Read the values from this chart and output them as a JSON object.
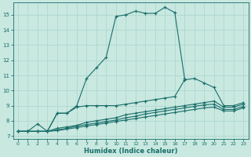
{
  "xlabel": "Humidex (Indice chaleur)",
  "ylabel": "",
  "xlim": [
    -0.5,
    23.5
  ],
  "ylim": [
    6.8,
    15.8
  ],
  "xticks": [
    0,
    1,
    2,
    3,
    4,
    5,
    6,
    7,
    8,
    9,
    10,
    11,
    12,
    13,
    14,
    15,
    16,
    17,
    18,
    19,
    20,
    21,
    22,
    23
  ],
  "yticks": [
    7,
    8,
    9,
    10,
    11,
    12,
    13,
    14,
    15
  ],
  "bg_color": "#c8e8e0",
  "grid_color": "#b0d8d0",
  "line_color": "#1a6e6a",
  "curves": [
    {
      "x": [
        0,
        1,
        2,
        3,
        4,
        5,
        6,
        7,
        8,
        9,
        10,
        11,
        12,
        13,
        14,
        15,
        16,
        17,
        18,
        19,
        20,
        21,
        22,
        23
      ],
      "y": [
        7.3,
        7.3,
        7.8,
        7.3,
        8.5,
        8.5,
        9.0,
        10.8,
        11.5,
        12.2,
        14.9,
        15.0,
        15.25,
        15.1,
        15.1,
        15.5,
        15.15,
        10.8,
        null,
        null,
        null,
        null,
        null,
        null
      ]
    },
    {
      "x": [
        0,
        1,
        2,
        3,
        4,
        5,
        6,
        7,
        8,
        9,
        10,
        11,
        12,
        13,
        14,
        15,
        16,
        17,
        18,
        19,
        20,
        21,
        22,
        23
      ],
      "y": [
        7.3,
        7.3,
        7.3,
        7.3,
        8.5,
        8.5,
        8.9,
        9.0,
        9.0,
        9.0,
        9.0,
        9.1,
        9.2,
        9.3,
        9.4,
        9.5,
        9.6,
        10.7,
        10.8,
        10.5,
        10.2,
        9.0,
        9.0,
        9.2
      ]
    },
    {
      "x": [
        0,
        1,
        2,
        3,
        4,
        5,
        6,
        7,
        8,
        9,
        10,
        11,
        12,
        13,
        14,
        15,
        16,
        17,
        18,
        19,
        20,
        21,
        22,
        23
      ],
      "y": [
        7.3,
        7.3,
        7.3,
        7.3,
        7.5,
        7.6,
        7.7,
        7.9,
        8.0,
        8.1,
        8.2,
        8.4,
        8.5,
        8.6,
        8.7,
        8.8,
        8.9,
        9.0,
        9.1,
        9.2,
        9.3,
        8.9,
        8.9,
        9.1
      ]
    },
    {
      "x": [
        0,
        1,
        2,
        3,
        4,
        5,
        6,
        7,
        8,
        9,
        10,
        11,
        12,
        13,
        14,
        15,
        16,
        17,
        18,
        19,
        20,
        21,
        22,
        23
      ],
      "y": [
        7.3,
        7.3,
        7.3,
        7.3,
        7.4,
        7.5,
        7.65,
        7.75,
        7.85,
        7.95,
        8.05,
        8.2,
        8.3,
        8.45,
        8.55,
        8.65,
        8.75,
        8.85,
        8.95,
        9.05,
        9.1,
        8.75,
        8.75,
        8.95
      ]
    },
    {
      "x": [
        0,
        1,
        2,
        3,
        4,
        5,
        6,
        7,
        8,
        9,
        10,
        11,
        12,
        13,
        14,
        15,
        16,
        17,
        18,
        19,
        20,
        21,
        22,
        23
      ],
      "y": [
        7.3,
        7.3,
        7.3,
        7.3,
        7.35,
        7.45,
        7.55,
        7.65,
        7.75,
        7.85,
        7.95,
        8.05,
        8.15,
        8.25,
        8.35,
        8.45,
        8.55,
        8.65,
        8.75,
        8.85,
        8.9,
        8.65,
        8.65,
        8.85
      ]
    }
  ]
}
